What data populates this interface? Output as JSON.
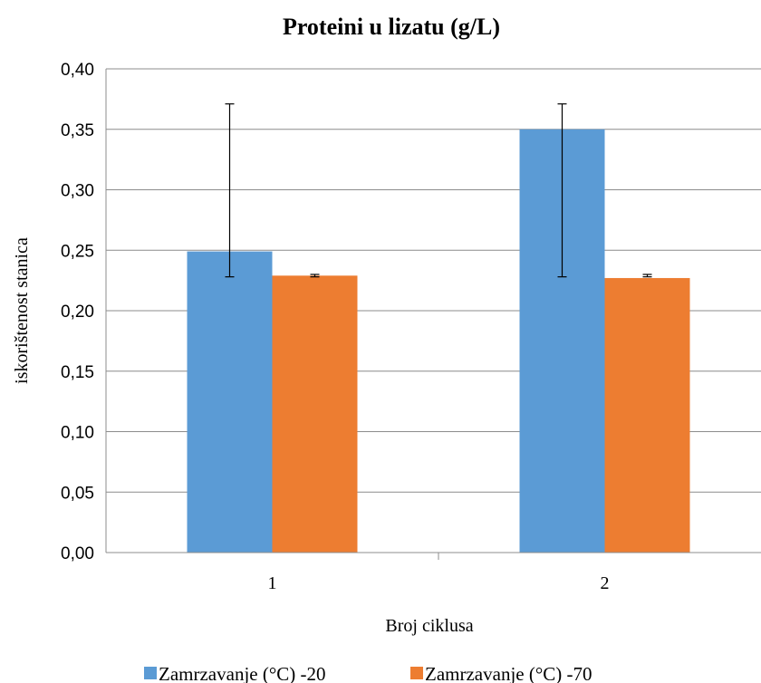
{
  "chart_data": {
    "type": "bar",
    "title": "Proteini u lizatu (g/L)",
    "xlabel": "Broj ciklusa",
    "ylabel": "iskorištenost stanica",
    "categories": [
      "1",
      "2"
    ],
    "series": [
      {
        "name": "Zamrzavanje (°C) -20",
        "color": "#5b9bd5",
        "values": [
          0.249,
          0.35
        ],
        "error_low": [
          0.228,
          0.228
        ],
        "error_high": [
          0.371,
          0.371
        ]
      },
      {
        "name": "Zamrzavanje (°C) -70",
        "color": "#ed7d31",
        "values": [
          0.229,
          0.227
        ],
        "error_low": [
          0.228,
          0.228
        ],
        "error_high": [
          0.23,
          0.23
        ]
      }
    ],
    "ylim": [
      0,
      0.4
    ],
    "yticks": [
      "0,00",
      "0,05",
      "0,10",
      "0,15",
      "0,20",
      "0,25",
      "0,30",
      "0,35",
      "0,40"
    ],
    "grid": true,
    "legend_position": "bottom"
  }
}
